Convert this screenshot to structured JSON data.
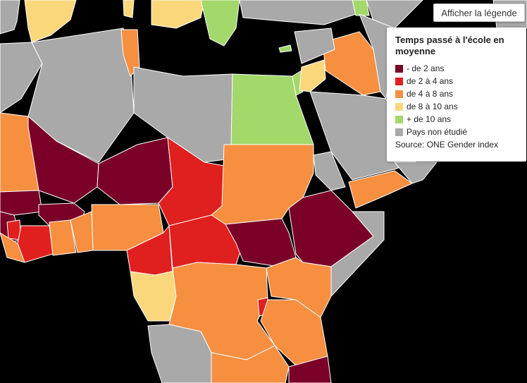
{
  "toggle_button": {
    "label": "Afficher la légende"
  },
  "legend": {
    "title": "Temps passé à l'école en moyenne",
    "items": [
      {
        "label": "- de 2 ans",
        "color": "#7b0027"
      },
      {
        "label": "de 2 à 4 ans",
        "color": "#e0201f"
      },
      {
        "label": "de 4 à 8 ans",
        "color": "#f68f40"
      },
      {
        "label": "de 8 à 10 ans",
        "color": "#fbd77c"
      },
      {
        "label": "+ de 10 ans",
        "color": "#a3d86b"
      },
      {
        "label": "Pays non étudié",
        "color": "#a9a9a9"
      }
    ],
    "source": "Source: ONE Gender index"
  },
  "background_color": "#000000"
}
